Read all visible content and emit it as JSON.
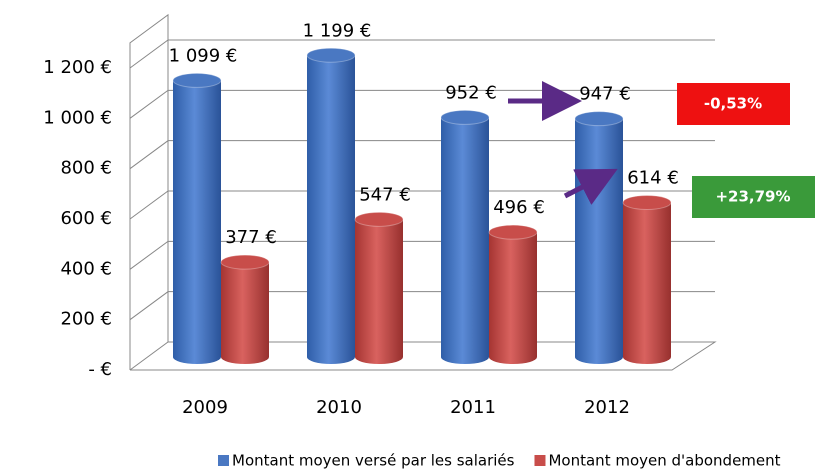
{
  "chart_data": {
    "type": "bar3d",
    "categories": [
      "2009",
      "2010",
      "2011",
      "2012"
    ],
    "series": [
      {
        "name": "Montant moyen versé par les salariés",
        "color": "#4a78c2",
        "values": [
          1099,
          1199,
          952,
          947
        ],
        "value_labels": [
          "1 099 €",
          "1 199 €",
          "952 €",
          "947 €"
        ]
      },
      {
        "name": "Montant moyen d'abondement",
        "color": "#c84d4a",
        "values": [
          377,
          547,
          496,
          614
        ],
        "value_labels": [
          "377 €",
          "547 €",
          "496 €",
          "614 €"
        ]
      }
    ],
    "ylim": [
      0,
      1300
    ],
    "yticks": [
      {
        "value": 0,
        "label": "-  €"
      },
      {
        "value": 200,
        "label": "200 €"
      },
      {
        "value": 400,
        "label": "400 €"
      },
      {
        "value": 600,
        "label": "600 €"
      },
      {
        "value": 800,
        "label": "800 €"
      },
      {
        "value": 1000,
        "label": "1 000 €"
      },
      {
        "value": 1200,
        "label": "1 200 €"
      }
    ],
    "grid": true,
    "legend": "bottom",
    "annotations": [
      {
        "text": "-0,53%",
        "color": "#ee1111"
      },
      {
        "text": "+23,79%",
        "color": "#3a9a3a"
      }
    ]
  }
}
